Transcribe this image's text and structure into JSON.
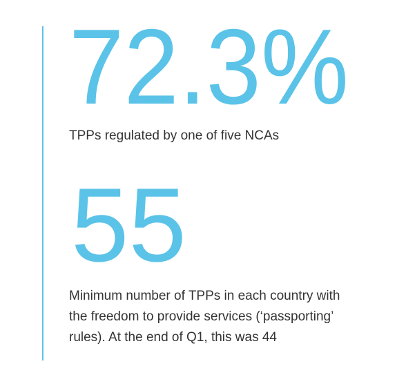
{
  "stats": [
    {
      "value": "72.3%",
      "label": "TPPs regulated by one of five NCAs"
    },
    {
      "value": "55",
      "label": "Minimum number of TPPs in each country with the freedom to provide services (‘passporting’ rules). At the end of Q1, this was 44"
    }
  ]
}
